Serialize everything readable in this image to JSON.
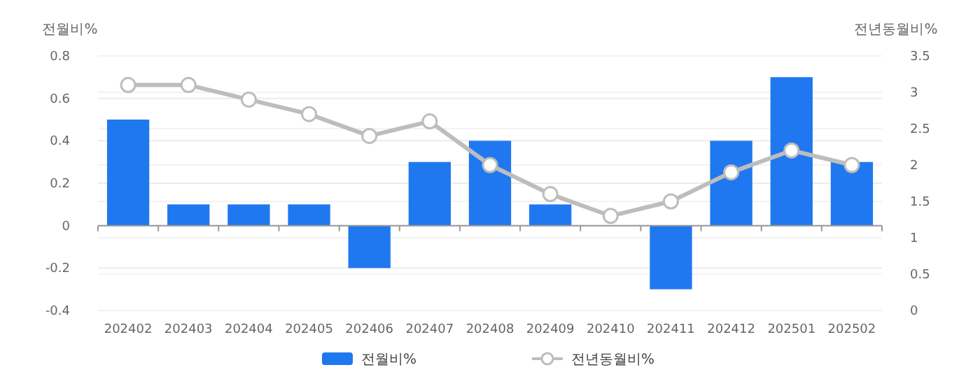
{
  "chart_data": {
    "type": "bar",
    "categories": [
      "202402",
      "202403",
      "202404",
      "202405",
      "202406",
      "202407",
      "202408",
      "202409",
      "202410",
      "202411",
      "202412",
      "202501",
      "202502"
    ],
    "series": [
      {
        "name": "전월비%",
        "color": "#1f78f0",
        "values": [
          0.5,
          0.1,
          0.1,
          0.1,
          -0.2,
          0.3,
          0.4,
          0.1,
          0,
          -0.3,
          0.4,
          0.7,
          0.3
        ]
      },
      {
        "name": "전년동월비%",
        "type": "line",
        "axis": "y2",
        "color": "#bdbdbd",
        "marker": "circle",
        "values": [
          3.1,
          3.1,
          2.9,
          2.7,
          2.4,
          2.6,
          2.0,
          1.6,
          1.3,
          1.5,
          1.9,
          2.2,
          2.0
        ]
      }
    ],
    "ylabel": "전월비%",
    "y2label": "전년동월비%",
    "ylim": [
      -0.4,
      0.8
    ],
    "yticks": [
      -0.4,
      -0.2,
      0,
      0.2,
      0.4,
      0.6,
      0.8
    ],
    "y2lim": [
      0,
      3.5
    ],
    "y2ticks": [
      0,
      0.5,
      1,
      1.5,
      2,
      2.5,
      3,
      3.5
    ],
    "grid": true,
    "legend": "bottom"
  }
}
